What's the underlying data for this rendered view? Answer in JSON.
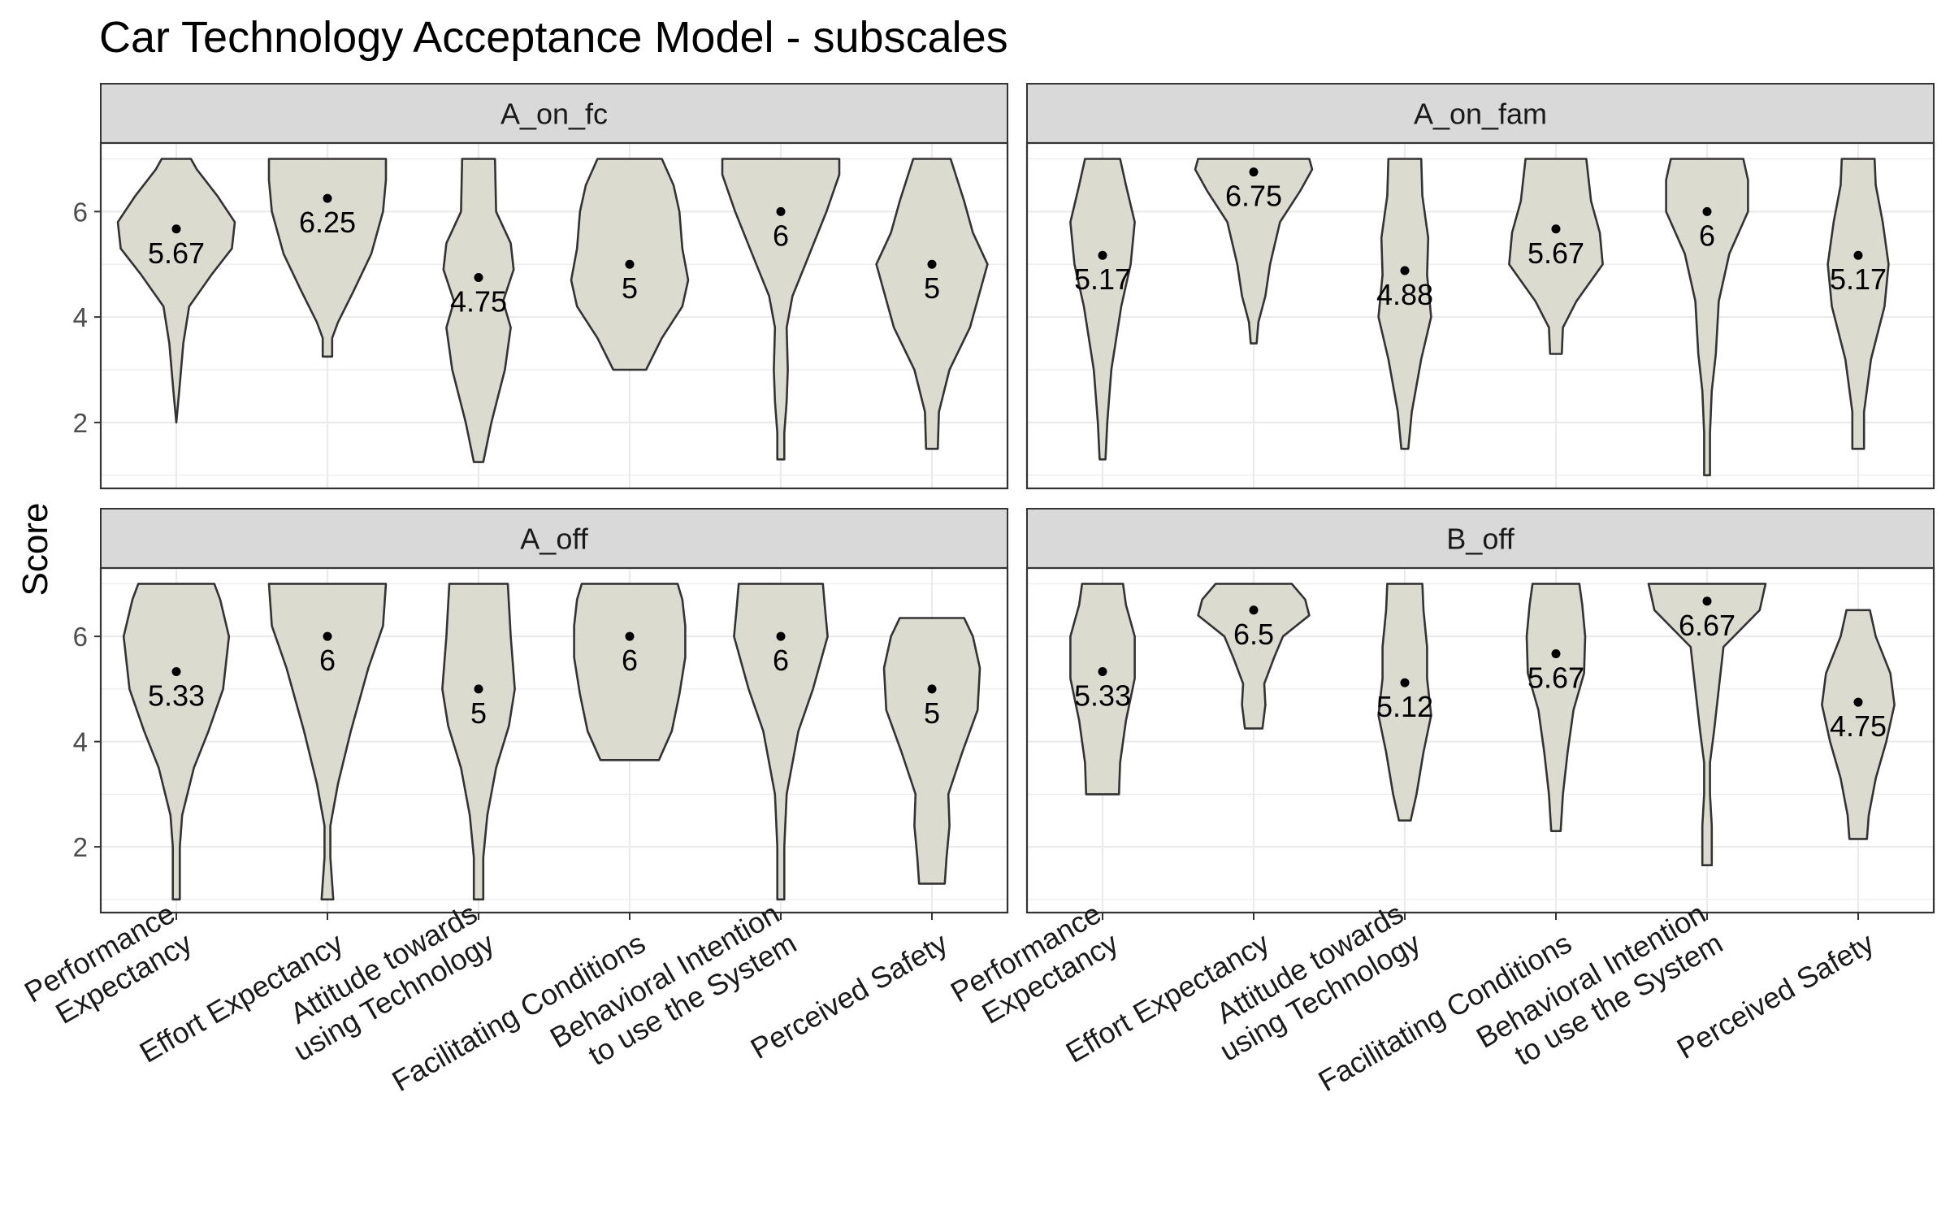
{
  "chart_data": {
    "type": "violin",
    "title": "Car Technology Acceptance Model - subscales",
    "ylabel": "Score",
    "xlabel": "",
    "ylim": [
      0.75,
      7.3
    ],
    "y_ticks": [
      2,
      4,
      6
    ],
    "grid": true,
    "fill_color": "#dcdbd0",
    "outline_color": "#333333",
    "strip_color": "#d9d9d9",
    "categories": [
      [
        "Performance",
        "Expectancy"
      ],
      [
        "Effort Expectancy"
      ],
      [
        "Attitude towards",
        "using Technology"
      ],
      [
        "Facilitating Conditions"
      ],
      [
        "Behavioral Intention",
        "to use the System"
      ],
      [
        "Perceived Safety"
      ]
    ],
    "panels": [
      {
        "name": "A_on_fc",
        "violins": [
          {
            "median": 5.67,
            "label": "5.67",
            "profile": [
              [
                2.0,
                0.0
              ],
              [
                2.6,
                0.05
              ],
              [
                3.5,
                0.12
              ],
              [
                4.2,
                0.22
              ],
              [
                4.8,
                0.6
              ],
              [
                5.3,
                0.95
              ],
              [
                5.8,
                1.0
              ],
              [
                6.3,
                0.7
              ],
              [
                6.8,
                0.35
              ],
              [
                7.0,
                0.25
              ]
            ]
          },
          {
            "median": 6.25,
            "label": "6.25",
            "profile": [
              [
                3.25,
                0.08
              ],
              [
                3.6,
                0.08
              ],
              [
                3.9,
                0.18
              ],
              [
                4.5,
                0.45
              ],
              [
                5.2,
                0.75
              ],
              [
                6.0,
                0.95
              ],
              [
                6.6,
                1.0
              ],
              [
                7.0,
                1.0
              ]
            ]
          },
          {
            "median": 4.75,
            "label": "4.75",
            "profile": [
              [
                1.25,
                0.08
              ],
              [
                2.0,
                0.22
              ],
              [
                3.0,
                0.45
              ],
              [
                3.8,
                0.55
              ],
              [
                4.3,
                0.42
              ],
              [
                4.9,
                0.6
              ],
              [
                5.4,
                0.55
              ],
              [
                6.0,
                0.3
              ],
              [
                7.0,
                0.28
              ]
            ]
          },
          {
            "median": 5.0,
            "label": "5",
            "profile": [
              [
                3.0,
                0.28
              ],
              [
                3.6,
                0.55
              ],
              [
                4.2,
                0.9
              ],
              [
                4.7,
                1.0
              ],
              [
                5.3,
                0.9
              ],
              [
                6.0,
                0.85
              ],
              [
                6.5,
                0.75
              ],
              [
                7.0,
                0.55
              ]
            ]
          },
          {
            "median": 6.0,
            "label": "6",
            "profile": [
              [
                1.3,
                0.06
              ],
              [
                1.8,
                0.06
              ],
              [
                2.4,
                0.1
              ],
              [
                3.0,
                0.12
              ],
              [
                3.8,
                0.1
              ],
              [
                4.4,
                0.2
              ],
              [
                5.0,
                0.42
              ],
              [
                6.0,
                0.78
              ],
              [
                6.7,
                1.0
              ],
              [
                7.0,
                1.0
              ]
            ]
          },
          {
            "median": 5.0,
            "label": "5",
            "profile": [
              [
                1.5,
                0.1
              ],
              [
                2.2,
                0.12
              ],
              [
                3.0,
                0.3
              ],
              [
                3.8,
                0.65
              ],
              [
                4.4,
                0.8
              ],
              [
                5.0,
                0.95
              ],
              [
                5.6,
                0.7
              ],
              [
                6.2,
                0.55
              ],
              [
                7.0,
                0.32
              ]
            ]
          }
        ]
      },
      {
        "name": "A_on_fam",
        "violins": [
          {
            "median": 5.17,
            "label": "5.17",
            "profile": [
              [
                1.3,
                0.05
              ],
              [
                2.0,
                0.08
              ],
              [
                3.0,
                0.15
              ],
              [
                4.2,
                0.32
              ],
              [
                5.0,
                0.48
              ],
              [
                5.8,
                0.55
              ],
              [
                6.5,
                0.4
              ],
              [
                7.0,
                0.3
              ]
            ]
          },
          {
            "median": 6.75,
            "label": "6.75",
            "profile": [
              [
                3.5,
                0.05
              ],
              [
                3.9,
                0.08
              ],
              [
                4.4,
                0.2
              ],
              [
                5.0,
                0.28
              ],
              [
                5.8,
                0.45
              ],
              [
                6.4,
                0.8
              ],
              [
                6.8,
                1.0
              ],
              [
                7.0,
                0.95
              ]
            ]
          },
          {
            "median": 4.88,
            "label": "4.88",
            "profile": [
              [
                1.5,
                0.06
              ],
              [
                2.2,
                0.12
              ],
              [
                3.2,
                0.28
              ],
              [
                4.0,
                0.45
              ],
              [
                4.8,
                0.38
              ],
              [
                5.5,
                0.4
              ],
              [
                6.3,
                0.3
              ],
              [
                7.0,
                0.28
              ]
            ]
          },
          {
            "median": 5.67,
            "label": "5.67",
            "profile": [
              [
                3.3,
                0.1
              ],
              [
                3.8,
                0.12
              ],
              [
                4.3,
                0.35
              ],
              [
                5.0,
                0.8
              ],
              [
                5.6,
                0.75
              ],
              [
                6.2,
                0.6
              ],
              [
                7.0,
                0.52
              ]
            ]
          },
          {
            "median": 6.0,
            "label": "6",
            "profile": [
              [
                1.0,
                0.05
              ],
              [
                1.8,
                0.05
              ],
              [
                2.6,
                0.08
              ],
              [
                3.3,
                0.15
              ],
              [
                4.3,
                0.2
              ],
              [
                5.2,
                0.38
              ],
              [
                6.0,
                0.7
              ],
              [
                6.6,
                0.7
              ],
              [
                7.0,
                0.62
              ]
            ]
          },
          {
            "median": 5.17,
            "label": "5.17",
            "profile": [
              [
                1.5,
                0.1
              ],
              [
                2.2,
                0.1
              ],
              [
                3.2,
                0.22
              ],
              [
                4.2,
                0.45
              ],
              [
                5.0,
                0.52
              ],
              [
                5.8,
                0.42
              ],
              [
                6.5,
                0.3
              ],
              [
                7.0,
                0.28
              ]
            ]
          }
        ]
      },
      {
        "name": "A_off",
        "violins": [
          {
            "median": 5.33,
            "label": "5.33",
            "profile": [
              [
                1.0,
                0.06
              ],
              [
                2.0,
                0.06
              ],
              [
                2.6,
                0.1
              ],
              [
                3.5,
                0.3
              ],
              [
                4.2,
                0.55
              ],
              [
                5.0,
                0.8
              ],
              [
                6.0,
                0.9
              ],
              [
                6.7,
                0.75
              ],
              [
                7.0,
                0.65
              ]
            ]
          },
          {
            "median": 6.0,
            "label": "6",
            "profile": [
              [
                1.0,
                0.1
              ],
              [
                1.8,
                0.05
              ],
              [
                2.4,
                0.05
              ],
              [
                3.2,
                0.18
              ],
              [
                4.2,
                0.4
              ],
              [
                5.4,
                0.7
              ],
              [
                6.2,
                0.95
              ],
              [
                7.0,
                1.0
              ]
            ]
          },
          {
            "median": 5.0,
            "label": "5",
            "profile": [
              [
                1.0,
                0.08
              ],
              [
                1.8,
                0.08
              ],
              [
                2.6,
                0.15
              ],
              [
                3.5,
                0.3
              ],
              [
                4.3,
                0.52
              ],
              [
                5.0,
                0.62
              ],
              [
                6.0,
                0.55
              ],
              [
                7.0,
                0.5
              ]
            ]
          },
          {
            "median": 6.0,
            "label": "6",
            "profile": [
              [
                3.65,
                0.5
              ],
              [
                4.2,
                0.72
              ],
              [
                4.9,
                0.85
              ],
              [
                5.6,
                0.95
              ],
              [
                6.2,
                0.95
              ],
              [
                6.7,
                0.9
              ],
              [
                7.0,
                0.82
              ]
            ]
          },
          {
            "median": 6.0,
            "label": "6",
            "profile": [
              [
                1.0,
                0.06
              ],
              [
                2.0,
                0.06
              ],
              [
                3.0,
                0.1
              ],
              [
                4.2,
                0.3
              ],
              [
                5.0,
                0.55
              ],
              [
                6.0,
                0.8
              ],
              [
                6.6,
                0.75
              ],
              [
                7.0,
                0.72
              ]
            ]
          },
          {
            "median": 5.0,
            "label": "5",
            "profile": [
              [
                1.3,
                0.22
              ],
              [
                1.8,
                0.25
              ],
              [
                2.4,
                0.3
              ],
              [
                3.0,
                0.28
              ],
              [
                3.8,
                0.52
              ],
              [
                4.6,
                0.78
              ],
              [
                5.4,
                0.82
              ],
              [
                6.0,
                0.7
              ],
              [
                6.35,
                0.55
              ]
            ]
          }
        ]
      },
      {
        "name": "B_off",
        "violins": [
          {
            "median": 5.33,
            "label": "5.33",
            "profile": [
              [
                3.0,
                0.28
              ],
              [
                3.6,
                0.3
              ],
              [
                4.4,
                0.4
              ],
              [
                5.2,
                0.55
              ],
              [
                6.0,
                0.55
              ],
              [
                6.6,
                0.4
              ],
              [
                7.0,
                0.35
              ]
            ]
          },
          {
            "median": 6.5,
            "label": "6.5",
            "profile": [
              [
                4.25,
                0.15
              ],
              [
                4.7,
                0.2
              ],
              [
                5.1,
                0.18
              ],
              [
                5.6,
                0.35
              ],
              [
                6.0,
                0.5
              ],
              [
                6.4,
                0.95
              ],
              [
                6.7,
                0.88
              ],
              [
                7.0,
                0.65
              ]
            ]
          },
          {
            "median": 5.12,
            "label": "5.12",
            "profile": [
              [
                2.5,
                0.1
              ],
              [
                3.0,
                0.2
              ],
              [
                3.8,
                0.32
              ],
              [
                4.5,
                0.45
              ],
              [
                5.2,
                0.38
              ],
              [
                5.8,
                0.38
              ],
              [
                6.5,
                0.32
              ],
              [
                7.0,
                0.3
              ]
            ]
          },
          {
            "median": 5.67,
            "label": "5.67",
            "profile": [
              [
                2.3,
                0.08
              ],
              [
                3.0,
                0.12
              ],
              [
                3.8,
                0.2
              ],
              [
                4.6,
                0.3
              ],
              [
                5.3,
                0.48
              ],
              [
                6.0,
                0.5
              ],
              [
                6.6,
                0.45
              ],
              [
                7.0,
                0.4
              ]
            ]
          },
          {
            "median": 6.67,
            "label": "6.67",
            "profile": [
              [
                1.65,
                0.08
              ],
              [
                2.4,
                0.08
              ],
              [
                3.0,
                0.05
              ],
              [
                3.6,
                0.05
              ],
              [
                4.2,
                0.12
              ],
              [
                5.0,
                0.2
              ],
              [
                5.8,
                0.28
              ],
              [
                6.5,
                0.9
              ],
              [
                7.0,
                1.0
              ]
            ]
          },
          {
            "median": 4.75,
            "label": "4.75",
            "profile": [
              [
                2.15,
                0.15
              ],
              [
                2.6,
                0.18
              ],
              [
                3.3,
                0.3
              ],
              [
                4.0,
                0.48
              ],
              [
                4.7,
                0.62
              ],
              [
                5.3,
                0.55
              ],
              [
                6.0,
                0.3
              ],
              [
                6.5,
                0.2
              ]
            ]
          }
        ]
      }
    ]
  }
}
